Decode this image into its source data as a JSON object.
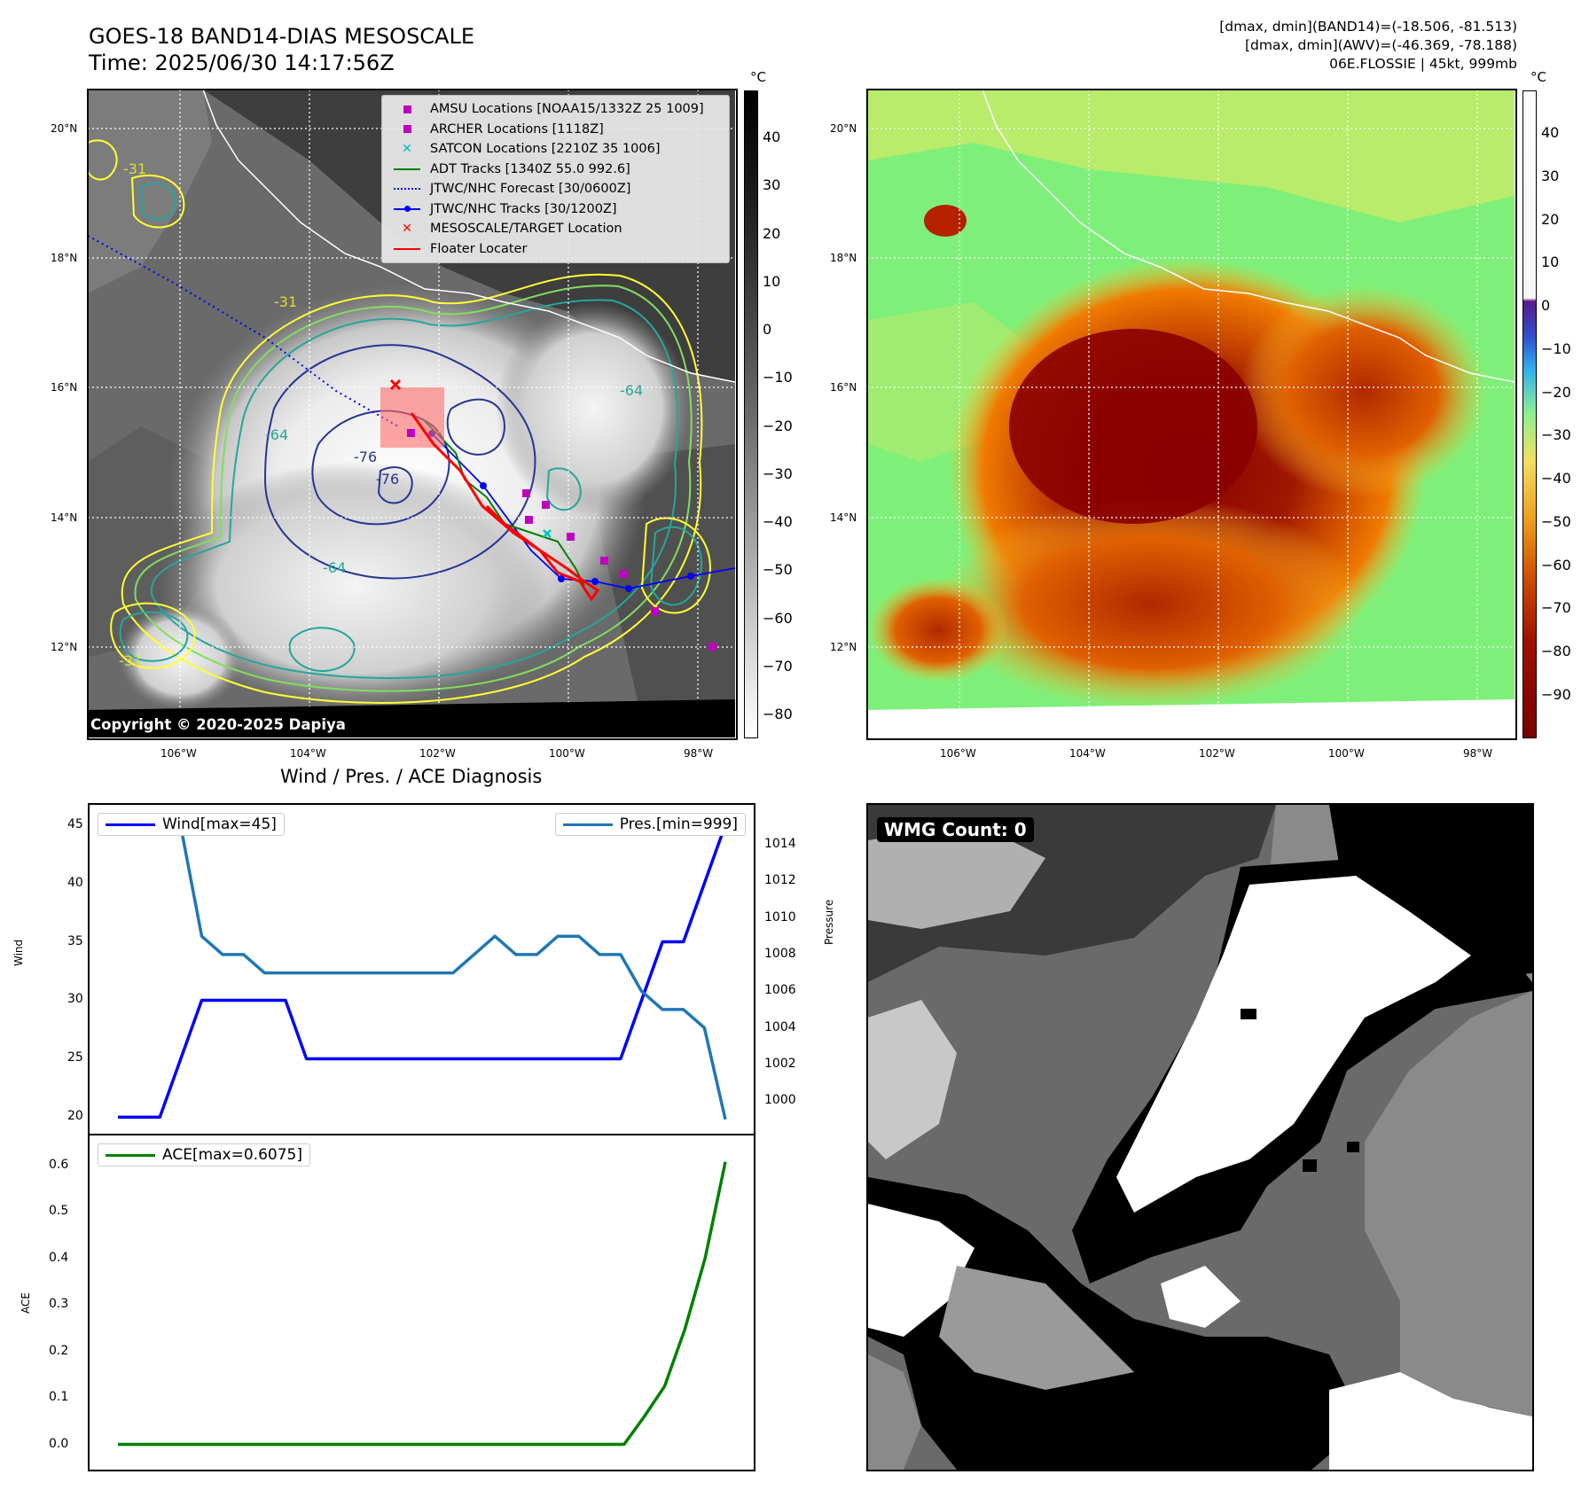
{
  "header": {
    "title_line1": "GOES-18 BAND14-DIAS MESOSCALE",
    "title_line2": "Time: 2025/06/30 14:17:56Z",
    "info_line1": "[dmax, dmin](BAND14)=(-18.506, -81.513)",
    "info_line2": "[dmax, dmin](AWV)=(-46.369, -78.188)",
    "info_line3": "06E.FLOSSIE | 45kt, 999mb"
  },
  "map_left": {
    "unit": "°C",
    "lat_labels": [
      "20°N",
      "18°N",
      "16°N",
      "14°N",
      "12°N"
    ],
    "lon_labels": [
      "106°W",
      "104°W",
      "102°W",
      "100°W",
      "98°W"
    ],
    "colorbar_ticks": [
      "40",
      "30",
      "20",
      "10",
      "0",
      "−10",
      "−20",
      "−30",
      "−40",
      "−50",
      "−60",
      "−70",
      "−80"
    ],
    "copyright": "Copyright © 2020-2025 Dapiya",
    "contour_labels": [
      "-31",
      "-64",
      "-76",
      "-31",
      "-64",
      "-76",
      "-31",
      "-64"
    ],
    "legend": [
      {
        "label": "AMSU Locations [NOAA15/1332Z 25 1009]",
        "symbol": "square",
        "color": "#c000c0",
        "icon": "magenta-square-icon"
      },
      {
        "label": "ARCHER Locations [1118Z]",
        "symbol": "square",
        "color": "#c000c0",
        "icon": "magenta-square-icon"
      },
      {
        "label": "SATCON Locations [2210Z 35 1006]",
        "symbol": "x",
        "color": "#00c0c0",
        "icon": "cyan-x-icon"
      },
      {
        "label": "ADT Tracks [1340Z 55.0 992.6]",
        "symbol": "line",
        "color": "#008000",
        "icon": "green-line-icon"
      },
      {
        "label": "JTWC/NHC Forecast [30/0600Z]",
        "symbol": "dotted",
        "color": "#0000ff",
        "icon": "blue-dotted-line-icon"
      },
      {
        "label": "JTWC/NHC Tracks [30/1200Z]",
        "symbol": "linedot",
        "color": "#0000ff",
        "icon": "blue-line-dot-icon"
      },
      {
        "label": "MESOSCALE/TARGET Location",
        "symbol": "x",
        "color": "#ff0000",
        "icon": "red-x-icon"
      },
      {
        "label": "Floater Locater",
        "symbol": "line",
        "color": "#ff0000",
        "icon": "red-line-icon"
      }
    ]
  },
  "map_right": {
    "unit": "°C",
    "lat_labels": [
      "20°N",
      "18°N",
      "16°N",
      "14°N",
      "12°N"
    ],
    "lon_labels": [
      "106°W",
      "104°W",
      "102°W",
      "100°W",
      "98°W"
    ],
    "colorbar_ticks": [
      "40",
      "30",
      "20",
      "10",
      "0",
      "−10",
      "−20",
      "−30",
      "−40",
      "−50",
      "−60",
      "−70",
      "−80",
      "−90"
    ]
  },
  "diagnosis": {
    "title": "Wind / Pres. / ACE Diagnosis",
    "wind_ylabel": "Wind",
    "pressure_ylabel": "Pressure",
    "ace_ylabel": "ACE",
    "wind_ticks": [
      "45",
      "40",
      "35",
      "30",
      "25",
      "20"
    ],
    "pressure_ticks": [
      "1014",
      "1012",
      "1010",
      "1008",
      "1006",
      "1004",
      "1002",
      "1000"
    ],
    "ace_ticks": [
      "0.6",
      "0.5",
      "0.4",
      "0.3",
      "0.2",
      "0.1",
      "0.0"
    ],
    "wind_legend": "Wind[max=45]",
    "pressure_legend": "Pres.[min=999]",
    "ace_legend": "ACE[max=0.6075]",
    "colors": {
      "wind": "#0000ff",
      "pressure": "#1f77b4",
      "ace": "#008000"
    }
  },
  "wmg": {
    "label": "WMG Count: 0"
  },
  "chart_data": [
    {
      "type": "line",
      "title": "Wind / Pres. / ACE Diagnosis",
      "ylabel": "Wind",
      "ylim": [
        19.5,
        45.5
      ],
      "series": [
        {
          "name": "Wind[max=45]",
          "values": [
            20,
            20,
            20,
            25,
            30,
            30,
            30,
            30,
            30,
            25,
            25,
            25,
            25,
            25,
            25,
            25,
            25,
            25,
            25,
            25,
            25,
            25,
            25,
            25,
            25,
            30,
            35,
            35,
            40,
            45
          ]
        }
      ]
    },
    {
      "type": "line",
      "ylabel": "Pressure",
      "ylim": [
        998.8,
        1015.4
      ],
      "series": [
        {
          "name": "Pres.[min=999]",
          "values": [
            1015,
            1015,
            1015,
            1015,
            1009,
            1008,
            1008,
            1007,
            1007,
            1007,
            1007,
            1007,
            1007,
            1007,
            1007,
            1007,
            1007,
            1008,
            1009,
            1008,
            1008,
            1009,
            1009,
            1008,
            1008,
            1006,
            1005,
            1005,
            1004,
            999
          ]
        }
      ]
    },
    {
      "type": "line",
      "ylabel": "ACE",
      "ylim": [
        -0.02,
        0.63
      ],
      "series": [
        {
          "name": "ACE[max=0.6075]",
          "values": [
            0,
            0,
            0,
            0,
            0,
            0,
            0,
            0,
            0,
            0,
            0,
            0,
            0,
            0,
            0,
            0,
            0,
            0,
            0,
            0,
            0,
            0,
            0,
            0,
            0,
            0,
            0.06,
            0.125,
            0.2475,
            0.4,
            0.6075
          ]
        }
      ]
    }
  ]
}
